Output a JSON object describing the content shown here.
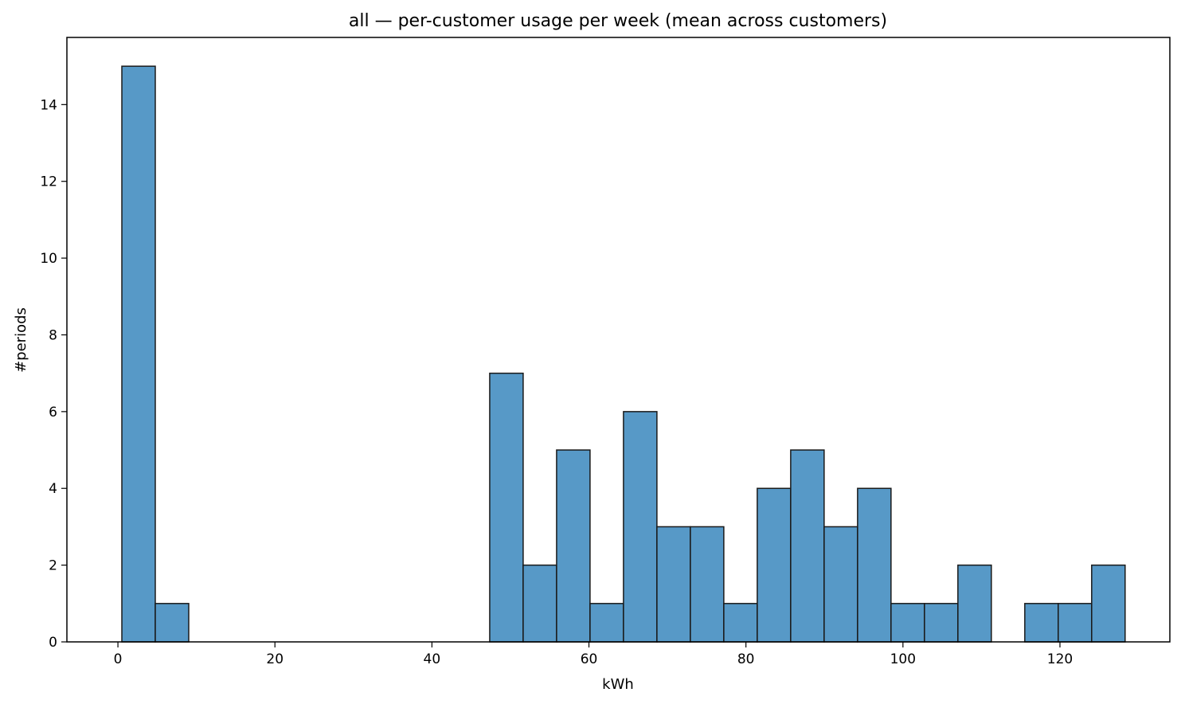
{
  "chart_data": {
    "type": "bar",
    "title": "all — per-customer usage per week (mean across customers)",
    "xlabel": "kWh",
    "ylabel": "#periods",
    "xlim": [
      -6.5,
      134.0
    ],
    "ylim": [
      0,
      15.75
    ],
    "xticks": [
      0,
      20,
      40,
      60,
      80,
      100,
      120
    ],
    "yticks": [
      0,
      2,
      4,
      6,
      8,
      10,
      12,
      14
    ],
    "grid": false,
    "bar_color": "#5799c7",
    "edge_color": "#1a1a1a",
    "bins": [
      {
        "start": 0.5,
        "end": 4.76,
        "count": 15
      },
      {
        "start": 4.76,
        "end": 9.02,
        "count": 1
      },
      {
        "start": 9.02,
        "end": 13.28,
        "count": 0
      },
      {
        "start": 13.28,
        "end": 17.54,
        "count": 0
      },
      {
        "start": 17.54,
        "end": 21.8,
        "count": 0
      },
      {
        "start": 21.8,
        "end": 26.06,
        "count": 0
      },
      {
        "start": 26.06,
        "end": 30.32,
        "count": 0
      },
      {
        "start": 30.32,
        "end": 34.58,
        "count": 0
      },
      {
        "start": 34.58,
        "end": 38.84,
        "count": 0
      },
      {
        "start": 38.84,
        "end": 43.1,
        "count": 0
      },
      {
        "start": 43.1,
        "end": 47.36,
        "count": 0
      },
      {
        "start": 47.36,
        "end": 51.62,
        "count": 7
      },
      {
        "start": 51.62,
        "end": 55.88,
        "count": 2
      },
      {
        "start": 55.88,
        "end": 60.14,
        "count": 5
      },
      {
        "start": 60.14,
        "end": 64.4,
        "count": 1
      },
      {
        "start": 64.4,
        "end": 68.66,
        "count": 6
      },
      {
        "start": 68.66,
        "end": 72.92,
        "count": 3
      },
      {
        "start": 72.92,
        "end": 77.18,
        "count": 3
      },
      {
        "start": 77.18,
        "end": 81.44,
        "count": 1
      },
      {
        "start": 81.44,
        "end": 85.7,
        "count": 4
      },
      {
        "start": 85.7,
        "end": 89.96,
        "count": 5
      },
      {
        "start": 89.96,
        "end": 94.22,
        "count": 3
      },
      {
        "start": 94.22,
        "end": 98.48,
        "count": 4
      },
      {
        "start": 98.48,
        "end": 102.74,
        "count": 1
      },
      {
        "start": 102.74,
        "end": 107.0,
        "count": 1
      },
      {
        "start": 107.0,
        "end": 111.26,
        "count": 2
      },
      {
        "start": 111.26,
        "end": 115.52,
        "count": 0
      },
      {
        "start": 115.52,
        "end": 119.78,
        "count": 1
      },
      {
        "start": 119.78,
        "end": 124.04,
        "count": 1
      },
      {
        "start": 124.04,
        "end": 128.3,
        "count": 2
      }
    ]
  }
}
